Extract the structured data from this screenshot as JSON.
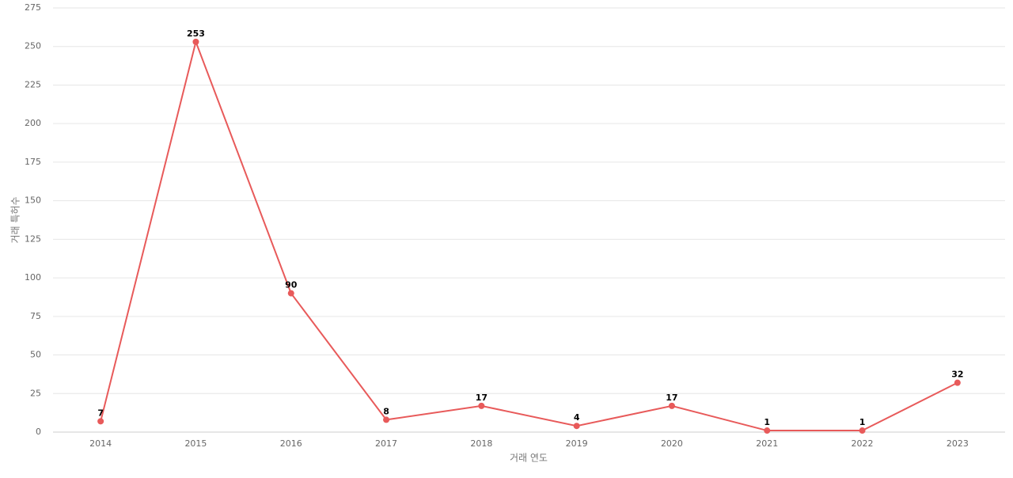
{
  "chart_data": {
    "type": "line",
    "x_label": "거래 연도",
    "y_label": "거래 특허수",
    "categories": [
      "2014",
      "2015",
      "2016",
      "2017",
      "2018",
      "2019",
      "2020",
      "2021",
      "2022",
      "2023"
    ],
    "values": [
      7,
      253,
      90,
      8,
      17,
      4,
      17,
      1,
      1,
      32
    ],
    "color": "#e85a5a",
    "ylim": [
      0,
      275
    ],
    "yticks": [
      0,
      25,
      50,
      75,
      100,
      125,
      150,
      175,
      200,
      225,
      250,
      275
    ],
    "grid": true
  }
}
